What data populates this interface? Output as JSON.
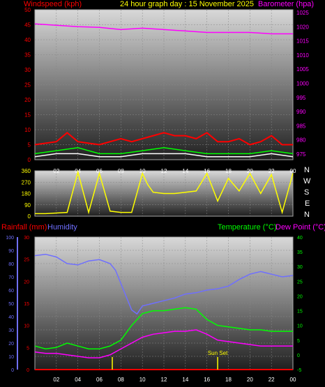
{
  "header": {
    "left_label": "Windspeed (kph)",
    "center_label": "24 hour graph day : 15 November 2025",
    "right_label": "Barometer (hpa)"
  },
  "bottom_header": {
    "rainfall_label": "Rainfall (mm)",
    "humidity_label": "Humidity",
    "temperature_label": "Temperature (°C)",
    "dewpoint_label": "Dew Point (°C)"
  },
  "direction_labels": [
    "N",
    "W",
    "S",
    "E",
    "N"
  ],
  "colors": {
    "wind": "#ff0000",
    "gust": "#00ff00",
    "wind_avg": "#ffffff",
    "barometer": "#ff00ff",
    "direction": "#ffff00",
    "temperature": "#00ff00",
    "dewpoint": "#ff00ff",
    "humidity": "#6f6fff",
    "rainfall": "#ff0000",
    "sun": "#ffff00",
    "title": "#ffff00"
  },
  "chart_data": [
    {
      "type": "line",
      "x_ticks": [
        "02",
        "04",
        "06",
        "08",
        "10",
        "12",
        "14",
        "16",
        "18",
        "20",
        "22",
        "00"
      ],
      "y_left_ticks": [
        0,
        5,
        10,
        15,
        20,
        25,
        30,
        35,
        40,
        45,
        50
      ],
      "y_left_range": [
        0,
        50
      ],
      "y_right_ticks": [
        975,
        980,
        985,
        990,
        995,
        1000,
        1005,
        1010,
        1015,
        1020,
        1025
      ],
      "y_right_range": [
        973,
        1026
      ],
      "series": [
        {
          "key": "barometer",
          "axis": "right",
          "x": [
            0,
            2,
            4,
            6,
            8,
            10,
            12,
            14,
            16,
            18,
            20,
            22,
            24
          ],
          "values": [
            1021,
            1020.5,
            1020,
            1019.8,
            1019,
            1019.5,
            1019,
            1018.5,
            1018,
            1018,
            1018,
            1017.5,
            1017.5
          ]
        },
        {
          "key": "wind",
          "axis": "left",
          "x": [
            0,
            2,
            3,
            4,
            6,
            8,
            9,
            10,
            11,
            12,
            13,
            14,
            15,
            16,
            17,
            18,
            19,
            20,
            21,
            22,
            23,
            24
          ],
          "values": [
            5,
            6,
            9,
            6,
            5,
            7,
            6,
            7,
            8,
            9,
            8,
            8,
            7,
            9,
            6,
            6,
            7,
            5,
            6,
            8,
            5,
            5
          ]
        },
        {
          "key": "gust",
          "axis": "left",
          "x": [
            0,
            2,
            4,
            6,
            8,
            10,
            12,
            14,
            16,
            18,
            20,
            22,
            24
          ],
          "values": [
            2,
            3,
            4,
            2,
            2,
            3,
            4,
            3,
            2,
            2,
            2,
            3,
            2
          ]
        },
        {
          "key": "wind_avg",
          "axis": "left",
          "x": [
            0,
            2,
            4,
            6,
            8,
            10,
            12,
            14,
            16,
            18,
            20,
            22,
            24
          ],
          "values": [
            1,
            2,
            2,
            1,
            1,
            2,
            2,
            2,
            1,
            1,
            1,
            2,
            1
          ]
        }
      ]
    },
    {
      "type": "line",
      "y_ticks": [
        0,
        90,
        180,
        270,
        360
      ],
      "y_range": [
        0,
        360
      ],
      "series": [
        {
          "key": "direction",
          "x": [
            0,
            1,
            2,
            3,
            4,
            5,
            6,
            7,
            8,
            9,
            10,
            10.5,
            11,
            12,
            13,
            14,
            15,
            16,
            17,
            18,
            19,
            20,
            21,
            22,
            23,
            24
          ],
          "values": [
            20,
            20,
            25,
            30,
            350,
            30,
            340,
            40,
            30,
            30,
            340,
            250,
            190,
            180,
            180,
            190,
            200,
            340,
            120,
            300,
            200,
            340,
            180,
            330,
            30,
            340
          ]
        }
      ]
    },
    {
      "type": "line",
      "y_humidity_ticks": [
        0,
        10,
        20,
        30,
        40,
        50,
        60,
        70,
        80,
        90,
        100
      ],
      "y_humidity_range": [
        0,
        100
      ],
      "y_rain_ticks": [
        0,
        5,
        10,
        15,
        20,
        25,
        30
      ],
      "y_temp_ticks": [
        -5,
        0,
        5,
        10,
        15,
        20,
        25,
        30,
        35,
        40
      ],
      "y_temp_range": [
        -5,
        40
      ],
      "annotations": [
        {
          "text": "Sun Set",
          "hour": 17
        }
      ],
      "series": [
        {
          "key": "humidity",
          "axis": "humidity",
          "x": [
            0,
            1,
            2,
            3,
            4,
            5,
            6,
            7,
            7.5,
            8,
            8.5,
            9,
            9.5,
            10,
            11,
            12,
            13,
            14,
            15,
            16,
            17,
            18,
            19,
            20,
            21,
            22,
            23,
            24
          ],
          "values": [
            86,
            87,
            85,
            80,
            79,
            82,
            83,
            80,
            75,
            65,
            55,
            45,
            42,
            48,
            50,
            52,
            54,
            57,
            58,
            60,
            61,
            63,
            68,
            72,
            74,
            72,
            70,
            71
          ]
        },
        {
          "key": "temperature",
          "axis": "temp",
          "x": [
            0,
            1,
            2,
            3,
            4,
            5,
            6,
            7,
            8,
            9,
            10,
            11,
            12,
            13,
            14,
            15,
            16,
            17,
            18,
            19,
            20,
            21,
            22,
            23,
            24
          ],
          "values": [
            3,
            2,
            2.5,
            4,
            3,
            2,
            2,
            3,
            5,
            10,
            14,
            15,
            15,
            15.5,
            16,
            15.5,
            12,
            10,
            9.5,
            9,
            8.5,
            8.5,
            8,
            8,
            8
          ]
        },
        {
          "key": "dewpoint",
          "axis": "temp",
          "x": [
            0,
            1,
            2,
            3,
            4,
            5,
            6,
            7,
            8,
            9,
            10,
            11,
            12,
            13,
            14,
            15,
            16,
            17,
            18,
            19,
            20,
            21,
            22,
            23,
            24
          ],
          "values": [
            1,
            0.5,
            0.5,
            0,
            -0.5,
            -1,
            -1,
            0,
            2,
            4,
            6,
            7,
            7.5,
            8,
            8,
            8.5,
            7,
            5,
            4.5,
            4,
            3.5,
            3,
            3,
            3,
            3
          ]
        },
        {
          "key": "rainfall",
          "axis": "humidity",
          "x": [
            0,
            24
          ],
          "values": [
            0,
            0
          ]
        }
      ]
    }
  ]
}
